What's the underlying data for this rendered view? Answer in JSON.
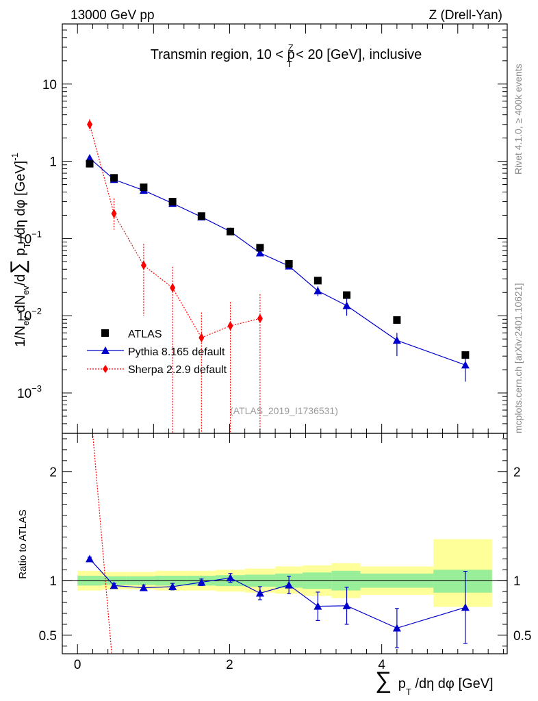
{
  "header": {
    "beam": "13000 GeV pp",
    "process": "Z (Drell-Yan)"
  },
  "side": {
    "rivet": "Rivet 4.1.0, ≥ 400k events",
    "mcplots": "mcplots.cern.ch [arXiv:2401.10621]"
  },
  "chart_data": [
    {
      "type": "scatter",
      "panel": "main",
      "title": "Transmin region, 10 < p_T^Z < 20 [GeV], inclusive",
      "watermark": "(ATLAS_2019_I1736531)",
      "ylabel": "1/N_ev dN_ev/d Σ p_T /dη dφ [GeV]^-1",
      "yscale": "log",
      "xlim": [
        -0.2,
        5.65
      ],
      "ylim": [
        0.0003,
        60
      ],
      "y_ticks": [
        {
          "v": 10,
          "label": "10"
        },
        {
          "v": 1,
          "label": "1"
        },
        {
          "v": 0.1,
          "label": "10",
          "exp": "−1"
        },
        {
          "v": 0.01,
          "label": "10",
          "exp": "−2"
        },
        {
          "v": 0.001,
          "label": "10",
          "exp": "−3"
        }
      ],
      "legend": [
        "ATLAS",
        "Pythia 8.165 default",
        "Sherpa 2.2.9 default"
      ],
      "series": [
        {
          "name": "ATLAS",
          "color": "#000000",
          "marker": "square",
          "x": [
            0.16,
            0.48,
            0.87,
            1.25,
            1.63,
            2.01,
            2.4,
            2.78,
            3.16,
            3.54,
            4.2,
            5.1
          ],
          "y": [
            0.93,
            0.61,
            0.46,
            0.3,
            0.195,
            0.123,
            0.076,
            0.047,
            0.0285,
            0.0185,
            0.0088,
            0.0031
          ]
        },
        {
          "name": "Pythia 8.165 default",
          "color": "#0000cc",
          "marker": "triangle",
          "x": [
            0.16,
            0.48,
            0.87,
            1.25,
            1.63,
            2.01,
            2.4,
            2.78,
            3.16,
            3.54,
            4.2,
            5.1
          ],
          "y": [
            1.1,
            0.58,
            0.42,
            0.285,
            0.19,
            0.123,
            0.065,
            0.044,
            0.021,
            0.0135,
            0.0048,
            0.0023
          ],
          "err_low": [
            0.02,
            0.01,
            0.01,
            0.01,
            0.005,
            0.005,
            0.003,
            0.002,
            0.003,
            0.0035,
            0.0018,
            0.0009
          ],
          "err_high": [
            0.02,
            0.01,
            0.01,
            0.01,
            0.005,
            0.005,
            0.003,
            0.002,
            0.003,
            0.0035,
            0.0012,
            0.0009
          ]
        },
        {
          "name": "Sherpa 2.2.9 default",
          "color": "#ff0000",
          "marker": "diamond",
          "x": [
            0.16,
            0.48,
            0.87,
            1.25,
            1.63,
            2.01,
            2.4
          ],
          "y": [
            3.0,
            0.21,
            0.045,
            0.023,
            0.0052,
            0.0074,
            0.0092
          ],
          "err_low": [
            0.5,
            0.08,
            0.035,
            0.0228,
            0.0051,
            0.0073,
            0.0091
          ],
          "err_high": [
            0.5,
            0.12,
            0.04,
            0.02,
            0.0058,
            0.0076,
            0.0098
          ]
        }
      ]
    },
    {
      "type": "line",
      "panel": "ratio",
      "ylabel": "Ratio to ATLAS",
      "xlabel": "Σ p_T /dη dφ [GeV]",
      "xlim": [
        -0.2,
        5.65
      ],
      "ylim": [
        0.33,
        2.35
      ],
      "x_ticks": [
        0,
        2,
        4
      ],
      "y_ticks": [
        0.5,
        1,
        2
      ],
      "bands": {
        "edges": [
          0,
          0.32,
          0.64,
          1.02,
          1.44,
          1.82,
          2.2,
          2.6,
          2.96,
          3.34,
          3.72,
          4.68,
          5.45
        ],
        "yellow_low": [
          0.91,
          0.92,
          0.92,
          0.91,
          0.91,
          0.9,
          0.89,
          0.88,
          0.86,
          0.84,
          0.87,
          0.76
        ],
        "yellow_high": [
          1.09,
          1.08,
          1.08,
          1.09,
          1.09,
          1.1,
          1.11,
          1.13,
          1.14,
          1.16,
          1.13,
          1.38
        ],
        "green_low": [
          0.955,
          0.96,
          0.96,
          0.955,
          0.955,
          0.95,
          0.945,
          0.935,
          0.925,
          0.91,
          0.935,
          0.89
        ],
        "green_high": [
          1.045,
          1.04,
          1.04,
          1.045,
          1.045,
          1.05,
          1.055,
          1.065,
          1.075,
          1.09,
          1.065,
          1.1
        ]
      },
      "series": [
        {
          "name": "Pythia 8.165 default",
          "color": "#0000cc",
          "marker": "triangle",
          "x": [
            0.16,
            0.48,
            0.87,
            1.25,
            1.63,
            2.01,
            2.4,
            2.78,
            3.16,
            3.54,
            4.2,
            5.1
          ],
          "y": [
            1.2,
            0.955,
            0.935,
            0.945,
            0.985,
            1.025,
            0.885,
            0.96,
            0.765,
            0.77,
            0.565,
            0.755
          ],
          "err_low": [
            0.015,
            0.02,
            0.025,
            0.03,
            0.03,
            0.04,
            0.06,
            0.08,
            0.13,
            0.17,
            0.18,
            0.33
          ],
          "err_high": [
            0.015,
            0.02,
            0.025,
            0.03,
            0.03,
            0.04,
            0.06,
            0.08,
            0.13,
            0.17,
            0.18,
            0.33
          ]
        },
        {
          "name": "Sherpa 2.2.9 default",
          "color": "#ff0000",
          "marker": "none",
          "x": [
            0.2,
            0.45
          ],
          "y": [
            2.35,
            0.33
          ]
        }
      ]
    }
  ]
}
